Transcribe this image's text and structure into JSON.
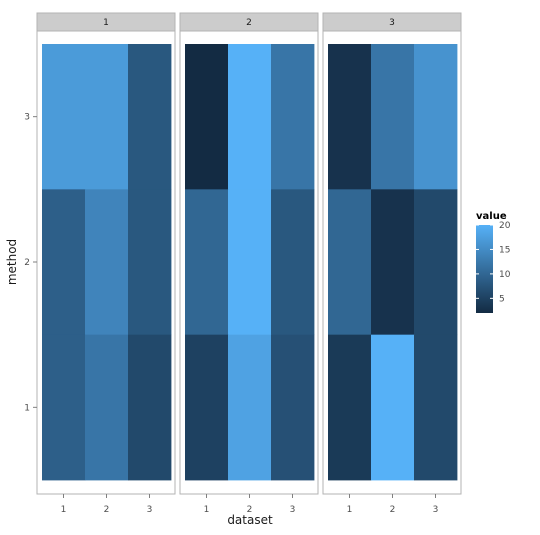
{
  "chart_data": {
    "type": "heatmap",
    "facet_variable": "",
    "facets": [
      "1",
      "2",
      "3"
    ],
    "x_categories": [
      "1",
      "2",
      "3"
    ],
    "y_categories": [
      "1",
      "2",
      "3"
    ],
    "xlabel": "dataset",
    "ylabel": "method",
    "legend": {
      "title": "value",
      "ticks": [
        5,
        10,
        15,
        20
      ],
      "min": 2,
      "max": 20,
      "position": "right"
    },
    "colors": {
      "low": "#132B43",
      "high": "#56B1F7",
      "strip_fill": "#cccccc",
      "panel_border": "#b3b3b3"
    },
    "panels": [
      {
        "facet": "1",
        "cells": [
          {
            "dataset": "1",
            "method": "3",
            "value": 17
          },
          {
            "dataset": "2",
            "method": "3",
            "value": 17
          },
          {
            "dataset": "3",
            "method": "3",
            "value": 8
          },
          {
            "dataset": "1",
            "method": "2",
            "value": 9
          },
          {
            "dataset": "2",
            "method": "2",
            "value": 14
          },
          {
            "dataset": "3",
            "method": "2",
            "value": 8
          },
          {
            "dataset": "1",
            "method": "1",
            "value": 9
          },
          {
            "dataset": "2",
            "method": "1",
            "value": 12
          },
          {
            "dataset": "3",
            "method": "1",
            "value": 6
          }
        ]
      },
      {
        "facet": "2",
        "cells": [
          {
            "dataset": "1",
            "method": "3",
            "value": 2
          },
          {
            "dataset": "2",
            "method": "3",
            "value": 20
          },
          {
            "dataset": "3",
            "method": "3",
            "value": 12
          },
          {
            "dataset": "1",
            "method": "2",
            "value": 10
          },
          {
            "dataset": "2",
            "method": "2",
            "value": 20
          },
          {
            "dataset": "3",
            "method": "2",
            "value": 8
          },
          {
            "dataset": "1",
            "method": "1",
            "value": 5
          },
          {
            "dataset": "2",
            "method": "1",
            "value": 18
          },
          {
            "dataset": "3",
            "method": "1",
            "value": 7
          }
        ]
      },
      {
        "facet": "3",
        "cells": [
          {
            "dataset": "1",
            "method": "3",
            "value": 3
          },
          {
            "dataset": "2",
            "method": "3",
            "value": 12
          },
          {
            "dataset": "3",
            "method": "3",
            "value": 16
          },
          {
            "dataset": "1",
            "method": "2",
            "value": 10
          },
          {
            "dataset": "2",
            "method": "2",
            "value": 3
          },
          {
            "dataset": "3",
            "method": "2",
            "value": 6
          },
          {
            "dataset": "1",
            "method": "1",
            "value": 4
          },
          {
            "dataset": "2",
            "method": "1",
            "value": 20
          },
          {
            "dataset": "3",
            "method": "1",
            "value": 6
          }
        ]
      }
    ]
  }
}
